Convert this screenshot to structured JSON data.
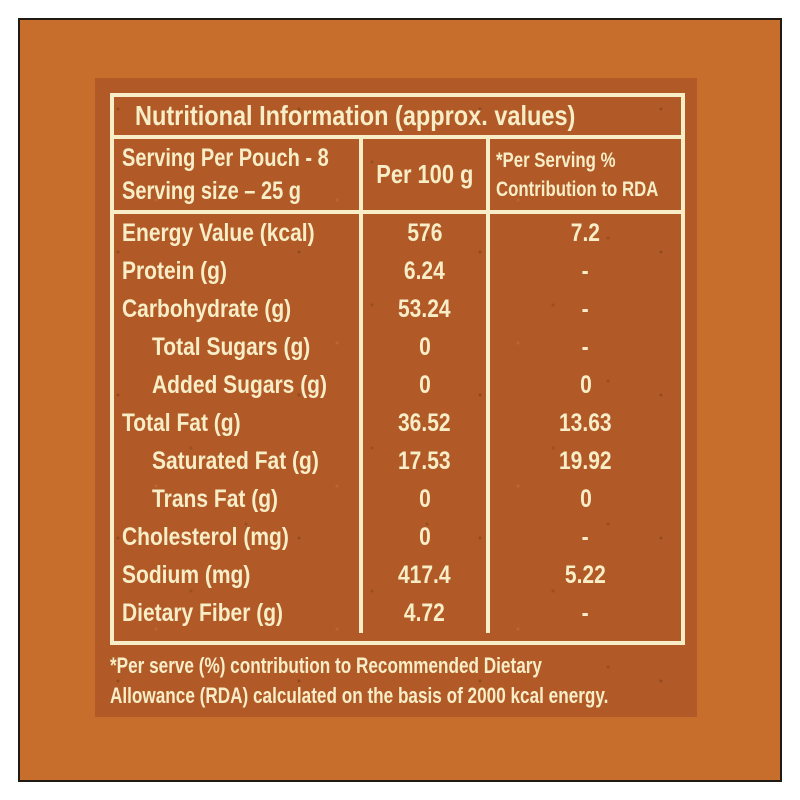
{
  "colors": {
    "page_bg": "#ffffff",
    "panel_bg": "#c86e2d",
    "panel_border": "#201a15",
    "label_bg": "#b15a27",
    "ink": "#f7edc6"
  },
  "title": "Nutritional Information (approx. values)",
  "header": {
    "serving_line1": "Serving Per Pouch - 8",
    "serving_line2": "Serving size – 25 g",
    "per_100": "Per 100 g",
    "rda_line1": "*Per Serving %",
    "rda_line2": "Contribution to RDA"
  },
  "rows": [
    {
      "label": "Energy Value (kcal)",
      "indent": false,
      "per100": "576",
      "rda": "7.2"
    },
    {
      "label": "Protein (g)",
      "indent": false,
      "per100": "6.24",
      "rda": "-"
    },
    {
      "label": "Carbohydrate (g)",
      "indent": false,
      "per100": "53.24",
      "rda": "-"
    },
    {
      "label": "Total Sugars (g)",
      "indent": true,
      "per100": "0",
      "rda": "-"
    },
    {
      "label": "Added Sugars (g)",
      "indent": true,
      "per100": "0",
      "rda": "0"
    },
    {
      "label": "Total Fat (g)",
      "indent": false,
      "per100": "36.52",
      "rda": "13.63"
    },
    {
      "label": "Saturated Fat (g)",
      "indent": true,
      "per100": "17.53",
      "rda": "19.92"
    },
    {
      "label": "Trans Fat (g)",
      "indent": true,
      "per100": "0",
      "rda": "0"
    },
    {
      "label": "Cholesterol (mg)",
      "indent": false,
      "per100": "0",
      "rda": "-"
    },
    {
      "label": "Sodium (mg)",
      "indent": false,
      "per100": "417.4",
      "rda": "5.22"
    },
    {
      "label": "Dietary Fiber (g)",
      "indent": false,
      "per100": "4.72",
      "rda": "-"
    }
  ],
  "footnote": {
    "line1": "*Per serve (%) contribution to Recommended Dietary",
    "line2": "Allowance (RDA) calculated on the basis of 2000 kcal energy."
  }
}
